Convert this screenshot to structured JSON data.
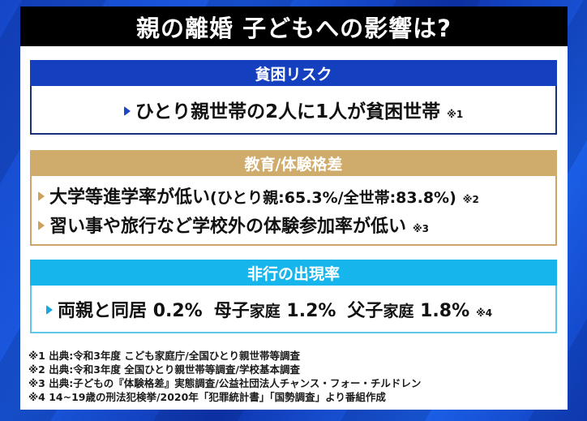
{
  "title": "親の離婚 子どもへの影響は?",
  "sections": [
    {
      "header": "貧困リスク",
      "color": "#1440c0",
      "items": [
        {
          "text": "ひとり親世帯の2人に1人が貧困世帯",
          "note": "※1"
        }
      ]
    },
    {
      "header": "教育/体験格差",
      "color": "#cfab6c",
      "items": [
        {
          "text": "大学等進学率が低い",
          "detail": "(ひとり親:65.3%/全世帯:83.8%)",
          "note": "※2"
        },
        {
          "text": "習い事や旅行など学校外の体験参加率が低い",
          "note": "※3"
        }
      ]
    },
    {
      "header": "非行の出現率",
      "color": "#16b6ec",
      "items": [
        {
          "groups": [
            {
              "label": "両親と同居",
              "value": "0.2%"
            },
            {
              "label_a": "母子",
              "label_b": "家庭",
              "value": "1.2%"
            },
            {
              "label_a": "父子",
              "label_b": "家庭",
              "value": "1.8%"
            }
          ],
          "note": "※4"
        }
      ]
    }
  ],
  "footnotes": [
    "※1 出典:令和3年度 こども家庭庁/全国ひとり親世帯等調査",
    "※2 出典:令和3年度 全国ひとり親世帯等調査/学校基本調査",
    "※3 出典:子どもの『体験格差』実態調査/公益社団法人チャンス・フォー・チルドレン",
    "※4 14~19歳の刑法犯検挙/2020年「犯罪統計書」「国勢調査」より番組作成"
  ]
}
